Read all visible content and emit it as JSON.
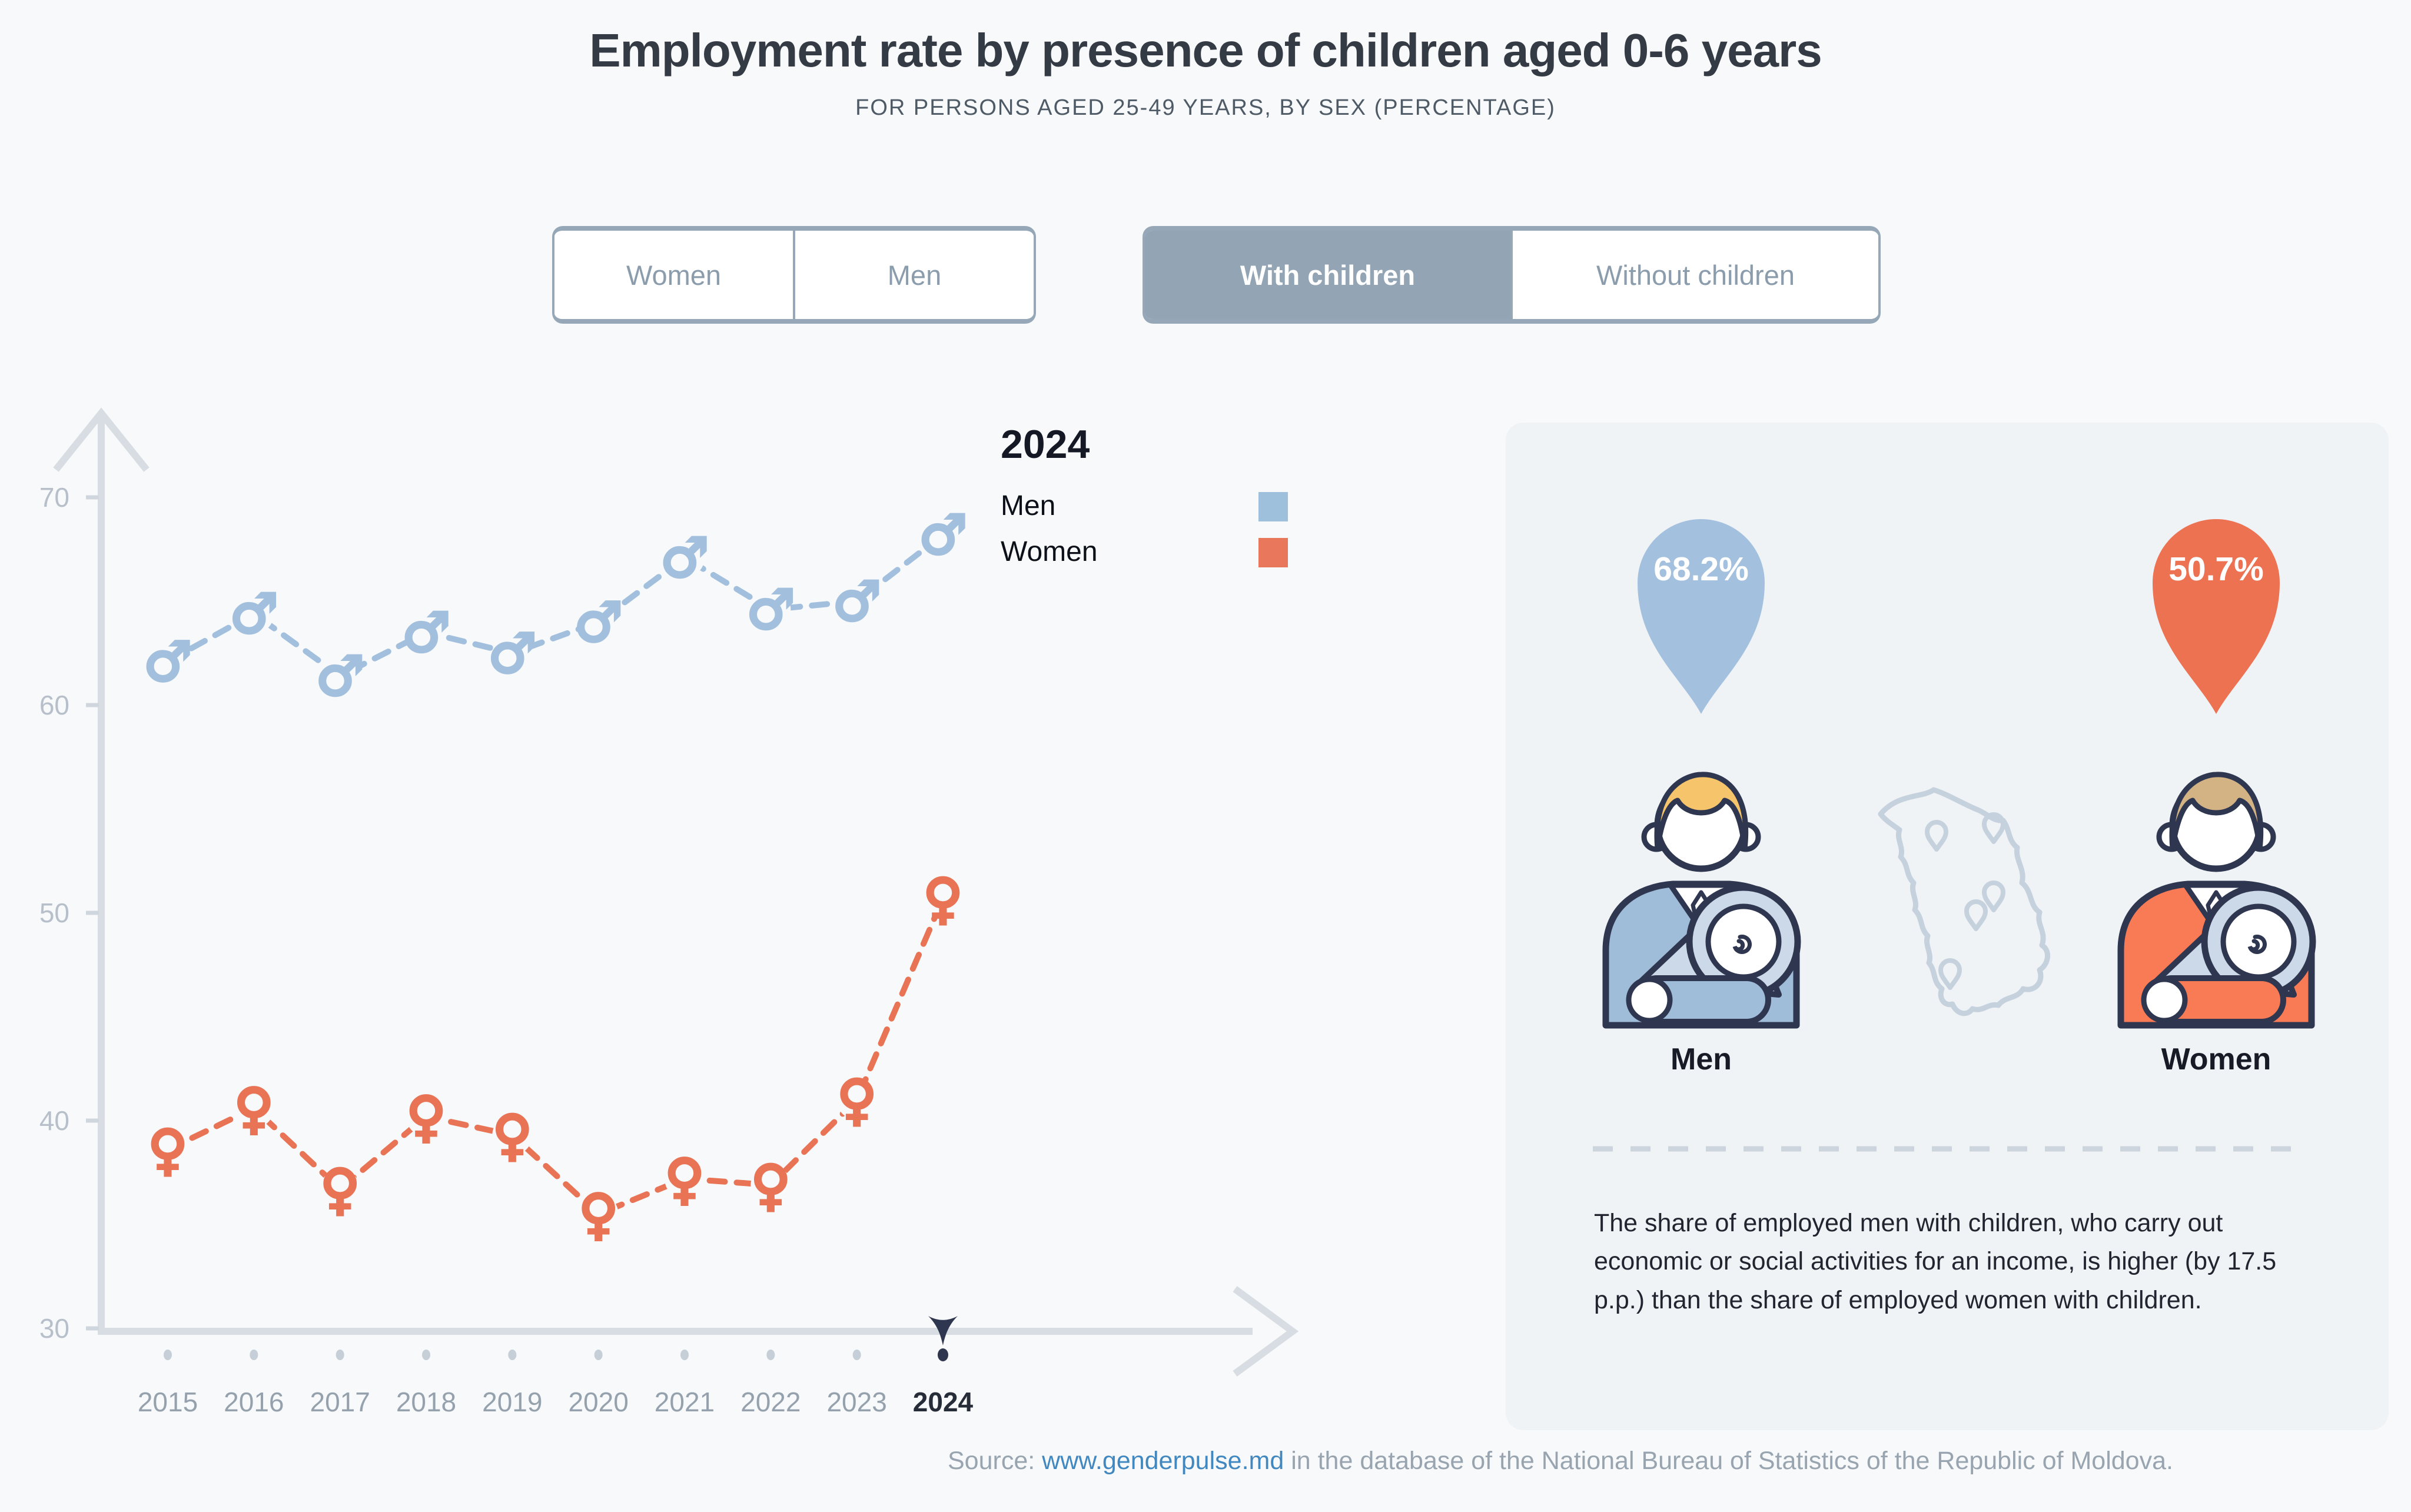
{
  "page": {
    "title": "Employment rate by presence of children aged 0-6 years",
    "subtitle": "FOR PERSONS AGED 25-49 YEARS, BY SEX (PERCENTAGE)",
    "background": "#f8f9fa"
  },
  "controls": {
    "sex": {
      "options": [
        {
          "label": "Women",
          "selected": false
        },
        {
          "label": "Men",
          "selected": false
        }
      ]
    },
    "children": {
      "options": [
        {
          "label": "With children",
          "selected": true
        },
        {
          "label": "Without children",
          "selected": false
        }
      ]
    },
    "selected_color": "#93a5b4",
    "border_color": "#96a8b7"
  },
  "legend": {
    "year": "2024",
    "items": [
      {
        "label": "Men",
        "color": "#9fc0dc"
      },
      {
        "label": "Women",
        "color": "#e8775c"
      }
    ]
  },
  "chart_data": {
    "type": "line",
    "title": "Employment rate by presence of children aged 0-6 years",
    "xlabel": "",
    "ylabel": "",
    "x": [
      2015,
      2016,
      2017,
      2018,
      2019,
      2020,
      2021,
      2022,
      2023,
      2024
    ],
    "series": [
      {
        "name": "Men",
        "color": "#a2c0dd",
        "marker": "male",
        "line_style": "dashed",
        "values": [
          62.1,
          64.4,
          61.4,
          63.5,
          62.5,
          64.0,
          67.1,
          64.6,
          65.0,
          68.2
        ]
      },
      {
        "name": "Women",
        "color": "#e97355",
        "marker": "female",
        "line_style": "dashed",
        "values": [
          38.6,
          40.6,
          36.7,
          40.2,
          39.3,
          35.5,
          37.2,
          36.9,
          41.0,
          50.7
        ]
      }
    ],
    "yticks": [
      30,
      40,
      50,
      60,
      70
    ],
    "ylim": [
      30,
      72
    ],
    "grid": false,
    "legend_position": "top-right",
    "selected_x": 2024,
    "axis_color": "#d7dde3",
    "tick_label_color": "#b7c0ca",
    "x_label_color": "#95a1ad",
    "x_label_selected_color": "#262c38",
    "selection_marker_color": "#2e3650"
  },
  "panel": {
    "men": {
      "value": "68.2%",
      "label": "Men",
      "balloon_color": "#a3c1de",
      "suit_color": "#9fbcd9",
      "hair_color": "#f6c56b"
    },
    "women": {
      "value": "50.7%",
      "label": "Women",
      "balloon_color": "#ec7252",
      "suit_color": "#f87b55",
      "hair_color": "#d3b384"
    },
    "note": "The share of employed men with children, who carry out economic or social activities for an income, is higher (by 17.5 p.p.) than the share of employed women with children.",
    "map_color": "#c6d1de",
    "outline_color": "#2e3650",
    "blanket_color": "#ccd9e8"
  },
  "source": {
    "prefix": "Source: ",
    "link": "www.genderpulse.md",
    "suffix": " in the database of the National Bureau of Statistics of the Republic of Moldova."
  }
}
